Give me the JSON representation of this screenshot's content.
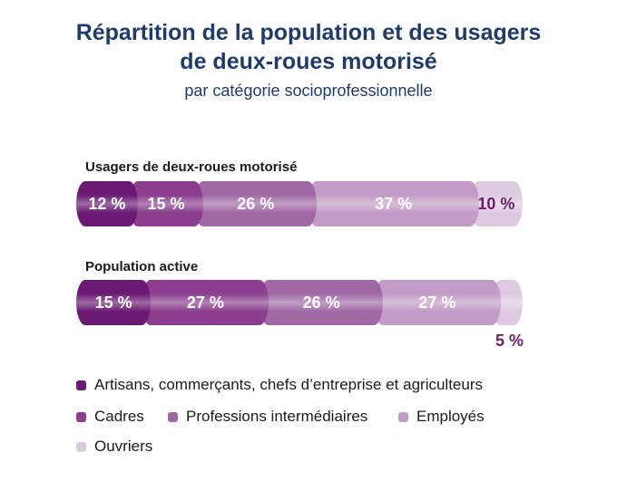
{
  "chart_data": {
    "type": "bar",
    "stacked": "horizontal-100pct",
    "title": "Répartition de la population et des usagers de deux-roues motorisé",
    "title_lines": [
      "Répartition de la population et des usagers",
      "de deux-roues motorisé"
    ],
    "subtitle": "par catégorie socioprofessionnelle",
    "categories": [
      "Usagers de deux-roues motorisé",
      "Population active"
    ],
    "series": [
      {
        "name": "Artisans, commerçants, chefs d’entreprise et agriculteurs",
        "color": "#6a1a73",
        "values": [
          12,
          15
        ],
        "labels": [
          "12 %",
          "15 %"
        ]
      },
      {
        "name": "Cadres",
        "color": "#8a3e8d",
        "values": [
          15,
          27
        ],
        "labels": [
          "15 %",
          "27 %"
        ]
      },
      {
        "name": "Professions intermédiaires",
        "color": "#a069a6",
        "values": [
          26,
          26
        ],
        "labels": [
          "26 %",
          "26 %"
        ]
      },
      {
        "name": "Employés",
        "color": "#c29cc6",
        "values": [
          37,
          27
        ],
        "labels": [
          "37 %",
          "27 %"
        ]
      },
      {
        "name": "Ouvriers",
        "color": "#ddc9e0",
        "values": [
          10,
          5
        ],
        "labels": [
          "10 %",
          "5 %"
        ]
      }
    ]
  }
}
